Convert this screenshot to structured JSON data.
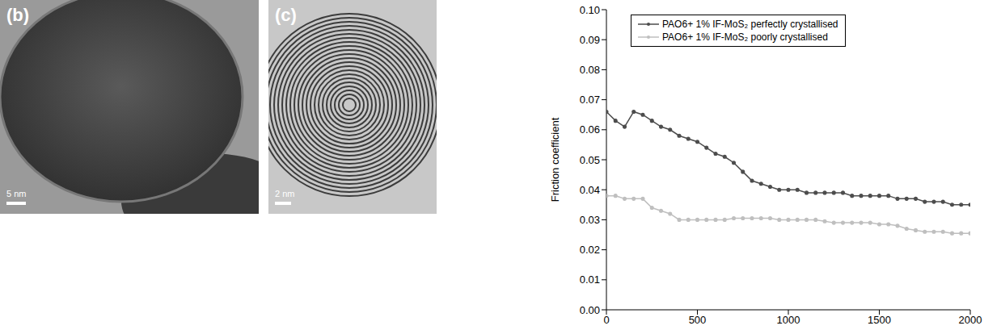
{
  "images": [
    {
      "label": "(b)",
      "scale_bar": "5 nm"
    },
    {
      "label": "(c)",
      "scale_bar": "2 nm"
    }
  ],
  "chart_data": {
    "type": "line",
    "y_label": "Friction coefficient",
    "x": [
      0,
      50,
      100,
      150,
      200,
      250,
      300,
      350,
      400,
      450,
      500,
      550,
      600,
      650,
      700,
      750,
      800,
      850,
      900,
      950,
      1000,
      1050,
      1100,
      1150,
      1200,
      1250,
      1300,
      1350,
      1400,
      1450,
      1500,
      1550,
      1600,
      1650,
      1700,
      1750,
      1800,
      1850,
      1900,
      1950,
      2000
    ],
    "series": [
      {
        "name": "PAO6+ 1% IF-MoS₂ perfectly crystallised",
        "color": "#4d4d4d",
        "marker": "circle",
        "values": [
          0.066,
          0.063,
          0.061,
          0.066,
          0.065,
          0.063,
          0.061,
          0.06,
          0.058,
          0.057,
          0.056,
          0.054,
          0.052,
          0.051,
          0.049,
          0.046,
          0.043,
          0.042,
          0.041,
          0.04,
          0.04,
          0.04,
          0.039,
          0.039,
          0.039,
          0.039,
          0.039,
          0.038,
          0.038,
          0.038,
          0.038,
          0.038,
          0.037,
          0.037,
          0.037,
          0.036,
          0.036,
          0.036,
          0.035,
          0.035,
          0.035
        ]
      },
      {
        "name": "PAO6+ 1% IF-MoS₂ poorly crystallised",
        "color": "#bfbfbf",
        "marker": "circle",
        "values": [
          0.038,
          0.038,
          0.037,
          0.037,
          0.037,
          0.034,
          0.033,
          0.032,
          0.03,
          0.03,
          0.03,
          0.03,
          0.03,
          0.03,
          0.0305,
          0.0305,
          0.0305,
          0.0305,
          0.0305,
          0.03,
          0.03,
          0.03,
          0.03,
          0.03,
          0.0295,
          0.029,
          0.029,
          0.029,
          0.029,
          0.029,
          0.0285,
          0.0285,
          0.028,
          0.027,
          0.0265,
          0.026,
          0.026,
          0.026,
          0.0255,
          0.0255,
          0.0255
        ]
      }
    ],
    "xlim": [
      0,
      2000
    ],
    "xticks": [
      0,
      500,
      1000,
      1500,
      2000
    ],
    "ylim": [
      0,
      0.1
    ],
    "yticks": [
      {
        "value": 0,
        "label": "0.00"
      },
      {
        "value": 0.01,
        "label": "0.01"
      },
      {
        "value": 0.02,
        "label": "0.02"
      },
      {
        "value": 0.03,
        "label": "0.03"
      },
      {
        "value": 0.04,
        "label": "0.04"
      },
      {
        "value": 0.05,
        "label": "0.05"
      },
      {
        "value": 0.06,
        "label": "0.06"
      },
      {
        "value": 0.07,
        "label": "0.07"
      },
      {
        "value": 0.08,
        "label": "0.08"
      },
      {
        "value": 0.09,
        "label": "0.09"
      },
      {
        "value": 0.1,
        "label": "0.10"
      }
    ],
    "legend": "upper left",
    "grid": false
  }
}
